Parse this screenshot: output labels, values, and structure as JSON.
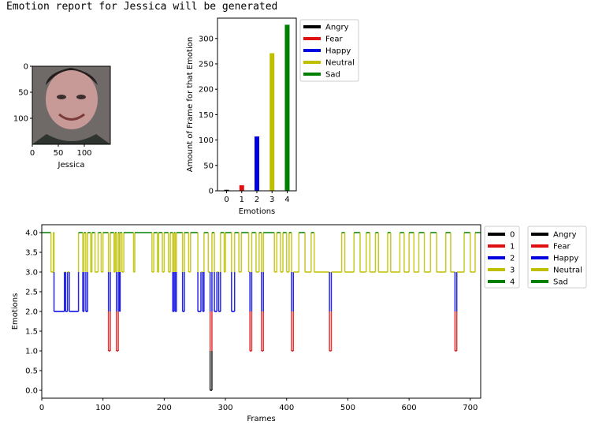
{
  "header": {
    "title": "Emotion report for Jessica will be generated"
  },
  "photo": {
    "xlabel": "Jessica",
    "xticks": [
      "0",
      "50",
      "100"
    ],
    "yticks": [
      "0",
      "50",
      "100"
    ]
  },
  "emotions": [
    "Angry",
    "Fear",
    "Happy",
    "Neutral",
    "Sad"
  ],
  "colors": {
    "Angry": "#000000",
    "Fear": "#e01010",
    "Happy": "#0000e0",
    "Neutral": "#bfbf00",
    "Sad": "#008000",
    "frame": "#000000"
  },
  "chart_data": [
    {
      "type": "bar",
      "categories": [
        "0",
        "1",
        "2",
        "3",
        "4"
      ],
      "values": [
        2,
        11,
        107,
        271,
        327
      ],
      "xlabel": "Emotions",
      "ylabel": "Amount of Frame for that Emotion",
      "ylim": [
        0,
        340
      ],
      "yticks": [
        0,
        50,
        100,
        150,
        200,
        250,
        300
      ],
      "legend": [
        "Angry",
        "Fear",
        "Happy",
        "Neutral",
        "Sad"
      ],
      "legend_position": "outside right"
    },
    {
      "type": "line",
      "xlabel": "Frames",
      "ylabel": "Emotions",
      "xlim": [
        0,
        717
      ],
      "ylim": [
        -0.2,
        4.2
      ],
      "xticks": [
        0,
        100,
        200,
        300,
        400,
        500,
        600,
        700
      ],
      "yticks": [
        "0.0",
        "0.5",
        "1.0",
        "1.5",
        "2.0",
        "2.5",
        "3.0",
        "3.5",
        "4.0"
      ],
      "legend_left": [
        "0",
        "1",
        "2",
        "3",
        "4"
      ],
      "legend_right": [
        "Angry",
        "Fear",
        "Happy",
        "Neutral",
        "Sad"
      ],
      "legend_position": "outside right",
      "segments": [
        [
          0,
          4
        ],
        [
          15,
          4
        ],
        [
          15,
          3
        ],
        [
          19,
          3
        ],
        [
          19,
          4
        ],
        [
          20,
          4
        ],
        [
          20,
          2
        ],
        [
          37,
          2
        ],
        [
          37,
          3
        ],
        [
          39,
          3
        ],
        [
          39,
          2
        ],
        [
          42,
          2
        ],
        [
          42,
          3
        ],
        [
          45,
          3
        ],
        [
          45,
          2
        ],
        [
          60,
          2
        ],
        [
          60,
          4
        ],
        [
          67,
          4
        ],
        [
          67,
          2
        ],
        [
          69,
          2
        ],
        [
          69,
          4
        ],
        [
          72,
          4
        ],
        [
          72,
          2
        ],
        [
          75,
          2
        ],
        [
          75,
          4
        ],
        [
          80,
          4
        ],
        [
          80,
          3
        ],
        [
          82,
          3
        ],
        [
          82,
          4
        ],
        [
          87,
          4
        ],
        [
          87,
          3
        ],
        [
          92,
          3
        ],
        [
          92,
          4
        ],
        [
          97,
          4
        ],
        [
          97,
          3
        ],
        [
          100,
          3
        ],
        [
          100,
          4
        ],
        [
          109,
          4
        ],
        [
          109,
          1
        ],
        [
          112,
          1
        ],
        [
          112,
          4
        ],
        [
          118,
          4
        ],
        [
          118,
          3
        ],
        [
          120,
          3
        ],
        [
          120,
          4
        ],
        [
          122,
          4
        ],
        [
          122,
          1
        ],
        [
          125,
          1
        ],
        [
          125,
          4
        ],
        [
          127,
          4
        ],
        [
          127,
          2
        ],
        [
          128,
          2
        ],
        [
          128,
          4
        ],
        [
          131,
          4
        ],
        [
          131,
          3
        ],
        [
          134,
          3
        ],
        [
          134,
          4
        ],
        [
          150,
          4
        ],
        [
          150,
          3
        ],
        [
          152,
          3
        ],
        [
          152,
          4
        ],
        [
          180,
          4
        ],
        [
          180,
          3
        ],
        [
          183,
          3
        ],
        [
          183,
          4
        ],
        [
          189,
          4
        ],
        [
          189,
          3
        ],
        [
          191,
          3
        ],
        [
          191,
          4
        ],
        [
          197,
          4
        ],
        [
          197,
          3
        ],
        [
          200,
          3
        ],
        [
          200,
          4
        ],
        [
          207,
          4
        ],
        [
          207,
          3
        ],
        [
          210,
          3
        ],
        [
          210,
          4
        ],
        [
          214,
          4
        ],
        [
          214,
          2
        ],
        [
          216,
          2
        ],
        [
          216,
          4
        ],
        [
          218,
          4
        ],
        [
          218,
          2
        ],
        [
          220,
          2
        ],
        [
          220,
          4
        ],
        [
          230,
          4
        ],
        [
          230,
          2
        ],
        [
          233,
          2
        ],
        [
          233,
          4
        ],
        [
          240,
          4
        ],
        [
          240,
          3
        ],
        [
          243,
          3
        ],
        [
          243,
          4
        ],
        [
          255,
          4
        ],
        [
          255,
          2
        ],
        [
          260,
          2
        ],
        [
          260,
          3
        ],
        [
          263,
          3
        ],
        [
          263,
          2
        ],
        [
          265,
          2
        ],
        [
          265,
          4
        ],
        [
          272,
          4
        ],
        [
          272,
          3
        ],
        [
          275,
          3
        ],
        [
          275,
          0
        ],
        [
          278,
          0
        ],
        [
          278,
          4
        ],
        [
          282,
          4
        ],
        [
          282,
          2
        ],
        [
          286,
          2
        ],
        [
          286,
          3
        ],
        [
          289,
          3
        ],
        [
          289,
          2
        ],
        [
          292,
          2
        ],
        [
          292,
          4
        ],
        [
          298,
          4
        ],
        [
          298,
          3
        ],
        [
          300,
          3
        ],
        [
          300,
          4
        ],
        [
          310,
          4
        ],
        [
          310,
          2
        ],
        [
          315,
          2
        ],
        [
          315,
          4
        ],
        [
          322,
          4
        ],
        [
          322,
          3
        ],
        [
          326,
          3
        ],
        [
          326,
          4
        ],
        [
          338,
          4
        ],
        [
          338,
          3
        ],
        [
          340,
          3
        ],
        [
          340,
          1
        ],
        [
          343,
          1
        ],
        [
          343,
          4
        ],
        [
          350,
          4
        ],
        [
          350,
          3
        ],
        [
          355,
          3
        ],
        [
          355,
          4
        ],
        [
          359,
          4
        ],
        [
          359,
          1
        ],
        [
          362,
          1
        ],
        [
          362,
          4
        ],
        [
          380,
          4
        ],
        [
          380,
          3
        ],
        [
          384,
          3
        ],
        [
          384,
          4
        ],
        [
          390,
          4
        ],
        [
          390,
          3
        ],
        [
          394,
          3
        ],
        [
          394,
          4
        ],
        [
          400,
          4
        ],
        [
          400,
          3
        ],
        [
          404,
          3
        ],
        [
          404,
          4
        ],
        [
          408,
          4
        ],
        [
          408,
          1
        ],
        [
          411,
          1
        ],
        [
          411,
          3
        ],
        [
          420,
          3
        ],
        [
          420,
          4
        ],
        [
          430,
          4
        ],
        [
          430,
          3
        ],
        [
          440,
          3
        ],
        [
          440,
          4
        ],
        [
          445,
          4
        ],
        [
          445,
          3
        ],
        [
          470,
          3
        ],
        [
          470,
          1
        ],
        [
          473,
          1
        ],
        [
          473,
          3
        ],
        [
          490,
          3
        ],
        [
          490,
          4
        ],
        [
          495,
          4
        ],
        [
          495,
          3
        ],
        [
          510,
          3
        ],
        [
          510,
          4
        ],
        [
          520,
          4
        ],
        [
          520,
          3
        ],
        [
          530,
          3
        ],
        [
          530,
          4
        ],
        [
          536,
          4
        ],
        [
          536,
          3
        ],
        [
          545,
          3
        ],
        [
          545,
          4
        ],
        [
          550,
          4
        ],
        [
          550,
          3
        ],
        [
          565,
          3
        ],
        [
          565,
          4
        ],
        [
          570,
          4
        ],
        [
          570,
          3
        ],
        [
          585,
          3
        ],
        [
          585,
          4
        ],
        [
          592,
          4
        ],
        [
          592,
          3
        ],
        [
          600,
          3
        ],
        [
          600,
          4
        ],
        [
          608,
          4
        ],
        [
          608,
          3
        ],
        [
          616,
          3
        ],
        [
          616,
          4
        ],
        [
          625,
          4
        ],
        [
          625,
          3
        ],
        [
          635,
          3
        ],
        [
          635,
          4
        ],
        [
          645,
          4
        ],
        [
          645,
          3
        ],
        [
          660,
          3
        ],
        [
          660,
          4
        ],
        [
          668,
          4
        ],
        [
          668,
          3
        ],
        [
          675,
          3
        ],
        [
          675,
          1
        ],
        [
          678,
          1
        ],
        [
          678,
          3
        ],
        [
          690,
          3
        ],
        [
          690,
          4
        ],
        [
          700,
          4
        ],
        [
          700,
          3
        ],
        [
          708,
          3
        ],
        [
          708,
          4
        ],
        [
          717,
          4
        ]
      ]
    }
  ]
}
